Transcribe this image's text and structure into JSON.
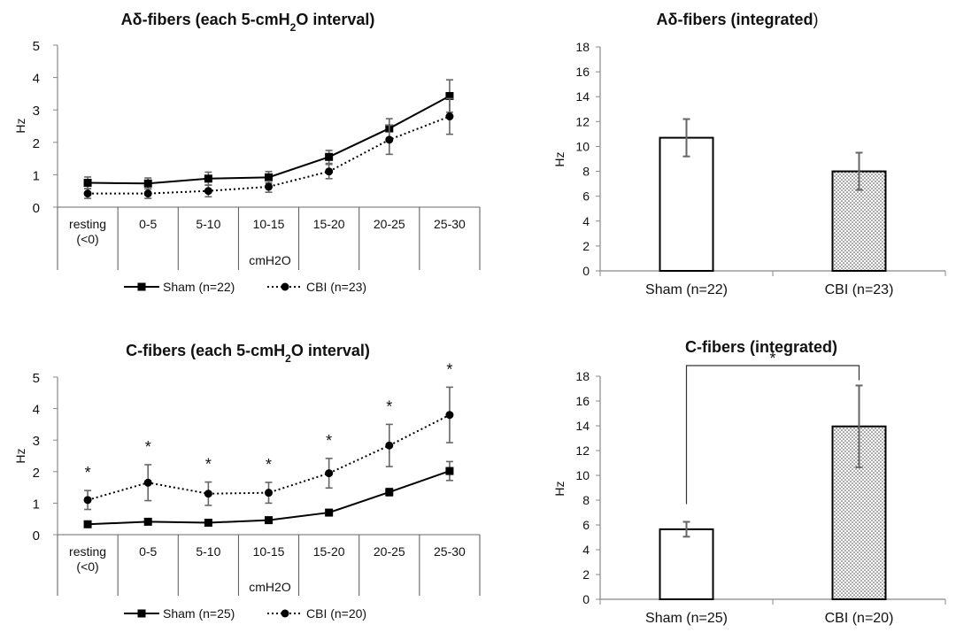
{
  "chart_data": [
    {
      "id": "ad_line",
      "type": "line",
      "title_prefix": "Aδ-fibers (each 5-cmH",
      "title_sub": "2",
      "title_suffix": "O interval)",
      "xlabel": "cmH2O",
      "ylabel": "Hz",
      "ylim": [
        0,
        5
      ],
      "yticks": [
        0,
        1,
        2,
        3,
        4,
        5
      ],
      "categories": [
        [
          "resting",
          "(<0)"
        ],
        [
          "0-5"
        ],
        [
          "5-10"
        ],
        [
          "10-15"
        ],
        [
          "15-20"
        ],
        [
          "20-25"
        ],
        [
          "25-30"
        ]
      ],
      "series": [
        {
          "name": "Sham (n=22)",
          "style": "solid",
          "marker": "square",
          "values": [
            0.75,
            0.73,
            0.88,
            0.92,
            1.55,
            2.43,
            3.43
          ],
          "errors": [
            0.18,
            0.17,
            0.2,
            0.18,
            0.2,
            0.3,
            0.5
          ]
        },
        {
          "name": "CBI (n=23)",
          "style": "dotted",
          "marker": "circle",
          "values": [
            0.42,
            0.42,
            0.5,
            0.63,
            1.1,
            2.08,
            2.8
          ],
          "errors": [
            0.15,
            0.15,
            0.18,
            0.17,
            0.22,
            0.45,
            0.55
          ]
        }
      ],
      "significance": [],
      "legend_position": "bottom"
    },
    {
      "id": "ad_bar",
      "type": "bar",
      "title_prefix": "Aδ-fibers (integrated",
      "title_suffix": ")",
      "ylabel": "Hz",
      "ylim": [
        0,
        18
      ],
      "yticks": [
        0,
        2,
        4,
        6,
        8,
        10,
        12,
        14,
        16,
        18
      ],
      "categories": [
        "Sham (n=22)",
        "CBI (n=23)"
      ],
      "values": [
        10.7,
        8.0
      ],
      "errors": [
        1.5,
        1.5
      ],
      "fills": [
        "white",
        "dotted"
      ],
      "bracket_label": ""
    },
    {
      "id": "c_line",
      "type": "line",
      "title_prefix": "C-fibers (each 5-cmH",
      "title_sub": "2",
      "title_suffix": "O interval)",
      "xlabel": "cmH2O",
      "ylabel": "Hz",
      "ylim": [
        0,
        5
      ],
      "yticks": [
        0,
        1,
        2,
        3,
        4,
        5
      ],
      "categories": [
        [
          "resting",
          "(<0)"
        ],
        [
          "0-5"
        ],
        [
          "5-10"
        ],
        [
          "10-15"
        ],
        [
          "15-20"
        ],
        [
          "20-25"
        ],
        [
          "25-30"
        ]
      ],
      "series": [
        {
          "name": "Sham (n=25)",
          "style": "solid",
          "marker": "square",
          "values": [
            0.33,
            0.41,
            0.38,
            0.46,
            0.7,
            1.35,
            2.02
          ],
          "errors": [
            0.05,
            0.05,
            0.05,
            0.05,
            0.06,
            0.12,
            0.3
          ]
        },
        {
          "name": "CBI (n=20)",
          "style": "dotted",
          "marker": "circle",
          "values": [
            1.1,
            1.65,
            1.3,
            1.33,
            1.95,
            2.83,
            3.8
          ],
          "errors": [
            0.3,
            0.57,
            0.37,
            0.33,
            0.47,
            0.67,
            0.88
          ]
        }
      ],
      "significance": [
        "*",
        "*",
        "*",
        "*",
        "*",
        "*",
        "*"
      ],
      "legend_position": "bottom"
    },
    {
      "id": "c_bar",
      "type": "bar",
      "title_prefix": "C-fibers (integrated)",
      "title_suffix": "",
      "ylabel": "Hz",
      "ylim": [
        0,
        18
      ],
      "yticks": [
        0,
        2,
        4,
        6,
        8,
        10,
        12,
        14,
        16,
        18
      ],
      "categories": [
        "Sham (n=25)",
        "CBI (n=20)"
      ],
      "values": [
        5.65,
        13.95
      ],
      "errors": [
        0.6,
        3.3
      ],
      "fills": [
        "white",
        "dotted"
      ],
      "bracket_label": "*"
    }
  ]
}
